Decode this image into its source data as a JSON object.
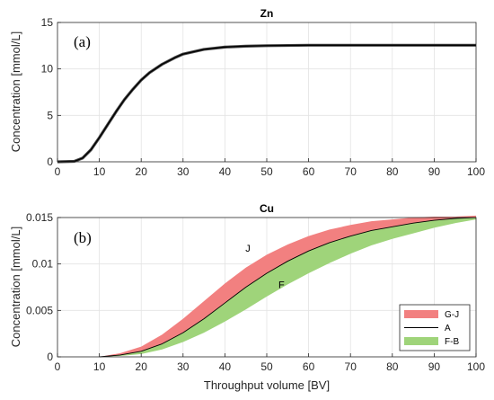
{
  "chart_data": [
    {
      "type": "line",
      "title": "Zn",
      "panel_tag": "(a)",
      "xlabel": "",
      "ylabel": "Concentration [mmol/L]",
      "xlim": [
        0,
        100
      ],
      "ylim": [
        0,
        15
      ],
      "xticks": [
        0,
        10,
        20,
        30,
        40,
        50,
        60,
        70,
        80,
        90,
        100
      ],
      "yticks": [
        0,
        5,
        10,
        15
      ],
      "grid": true,
      "series": [
        {
          "color": "#000000",
          "x": [
            0,
            4,
            6,
            8,
            10,
            12,
            14,
            16,
            18,
            20,
            22,
            25,
            28,
            30,
            35,
            40,
            45,
            50,
            60,
            70,
            80,
            90,
            100
          ],
          "y": [
            0,
            0.05,
            0.4,
            1.3,
            2.6,
            4.0,
            5.4,
            6.7,
            7.8,
            8.8,
            9.6,
            10.5,
            11.2,
            11.6,
            12.1,
            12.35,
            12.45,
            12.5,
            12.55,
            12.55,
            12.55,
            12.55,
            12.55
          ]
        }
      ]
    },
    {
      "type": "area",
      "title": "Cu",
      "panel_tag": "(b)",
      "xlabel": "Throughput volume [BV]",
      "ylabel": "Concentration [mmol/L]",
      "xlim": [
        0,
        100
      ],
      "ylim": [
        0,
        0.015
      ],
      "xticks": [
        0,
        10,
        20,
        30,
        40,
        50,
        60,
        70,
        80,
        90,
        100
      ],
      "yticks": [
        0,
        0.005,
        0.01,
        0.015
      ],
      "ytick_labels": [
        "0",
        "0.005",
        "0.01",
        "0.015"
      ],
      "grid": true,
      "legend": "bottom-right",
      "x": [
        10,
        15,
        20,
        25,
        30,
        35,
        40,
        45,
        50,
        55,
        60,
        65,
        70,
        75,
        80,
        85,
        90,
        95,
        100
      ],
      "bands": [
        {
          "name": "G-J",
          "color": "#f28080",
          "lower": [
            0,
            0.0002,
            0.0006,
            0.0014,
            0.0026,
            0.0041,
            0.0058,
            0.0075,
            0.009,
            0.0103,
            0.0114,
            0.0123,
            0.013,
            0.0136,
            0.014,
            0.0144,
            0.0147,
            0.0149,
            0.015
          ],
          "upper": [
            0,
            0.0004,
            0.0011,
            0.0024,
            0.0041,
            0.006,
            0.0079,
            0.0096,
            0.011,
            0.0121,
            0.013,
            0.0137,
            0.0142,
            0.0146,
            0.0148,
            0.015,
            0.0151,
            0.0151,
            0.0152
          ]
        },
        {
          "name": "F-B",
          "color": "#9fd47a",
          "lower": [
            0,
            0.0001,
            0.0003,
            0.0008,
            0.0016,
            0.0026,
            0.0038,
            0.0051,
            0.0065,
            0.0078,
            0.009,
            0.0101,
            0.0111,
            0.012,
            0.0127,
            0.0133,
            0.0139,
            0.0144,
            0.0148
          ],
          "upper": [
            0,
            0.0002,
            0.0006,
            0.0014,
            0.0026,
            0.0041,
            0.0058,
            0.0075,
            0.009,
            0.0103,
            0.0114,
            0.0123,
            0.013,
            0.0136,
            0.014,
            0.0144,
            0.0147,
            0.0149,
            0.015
          ]
        }
      ],
      "series": [
        {
          "name": "A",
          "color": "#000000",
          "y": [
            0,
            0.0002,
            0.0006,
            0.0014,
            0.0026,
            0.0041,
            0.0058,
            0.0075,
            0.009,
            0.0103,
            0.0114,
            0.0123,
            0.013,
            0.0136,
            0.014,
            0.0144,
            0.0147,
            0.0149,
            0.015
          ]
        }
      ],
      "annotations": [
        {
          "text": "J",
          "x": 45.5,
          "y": 0.0113
        },
        {
          "text": "F",
          "x": 53.5,
          "y": 0.0074
        }
      ]
    }
  ]
}
